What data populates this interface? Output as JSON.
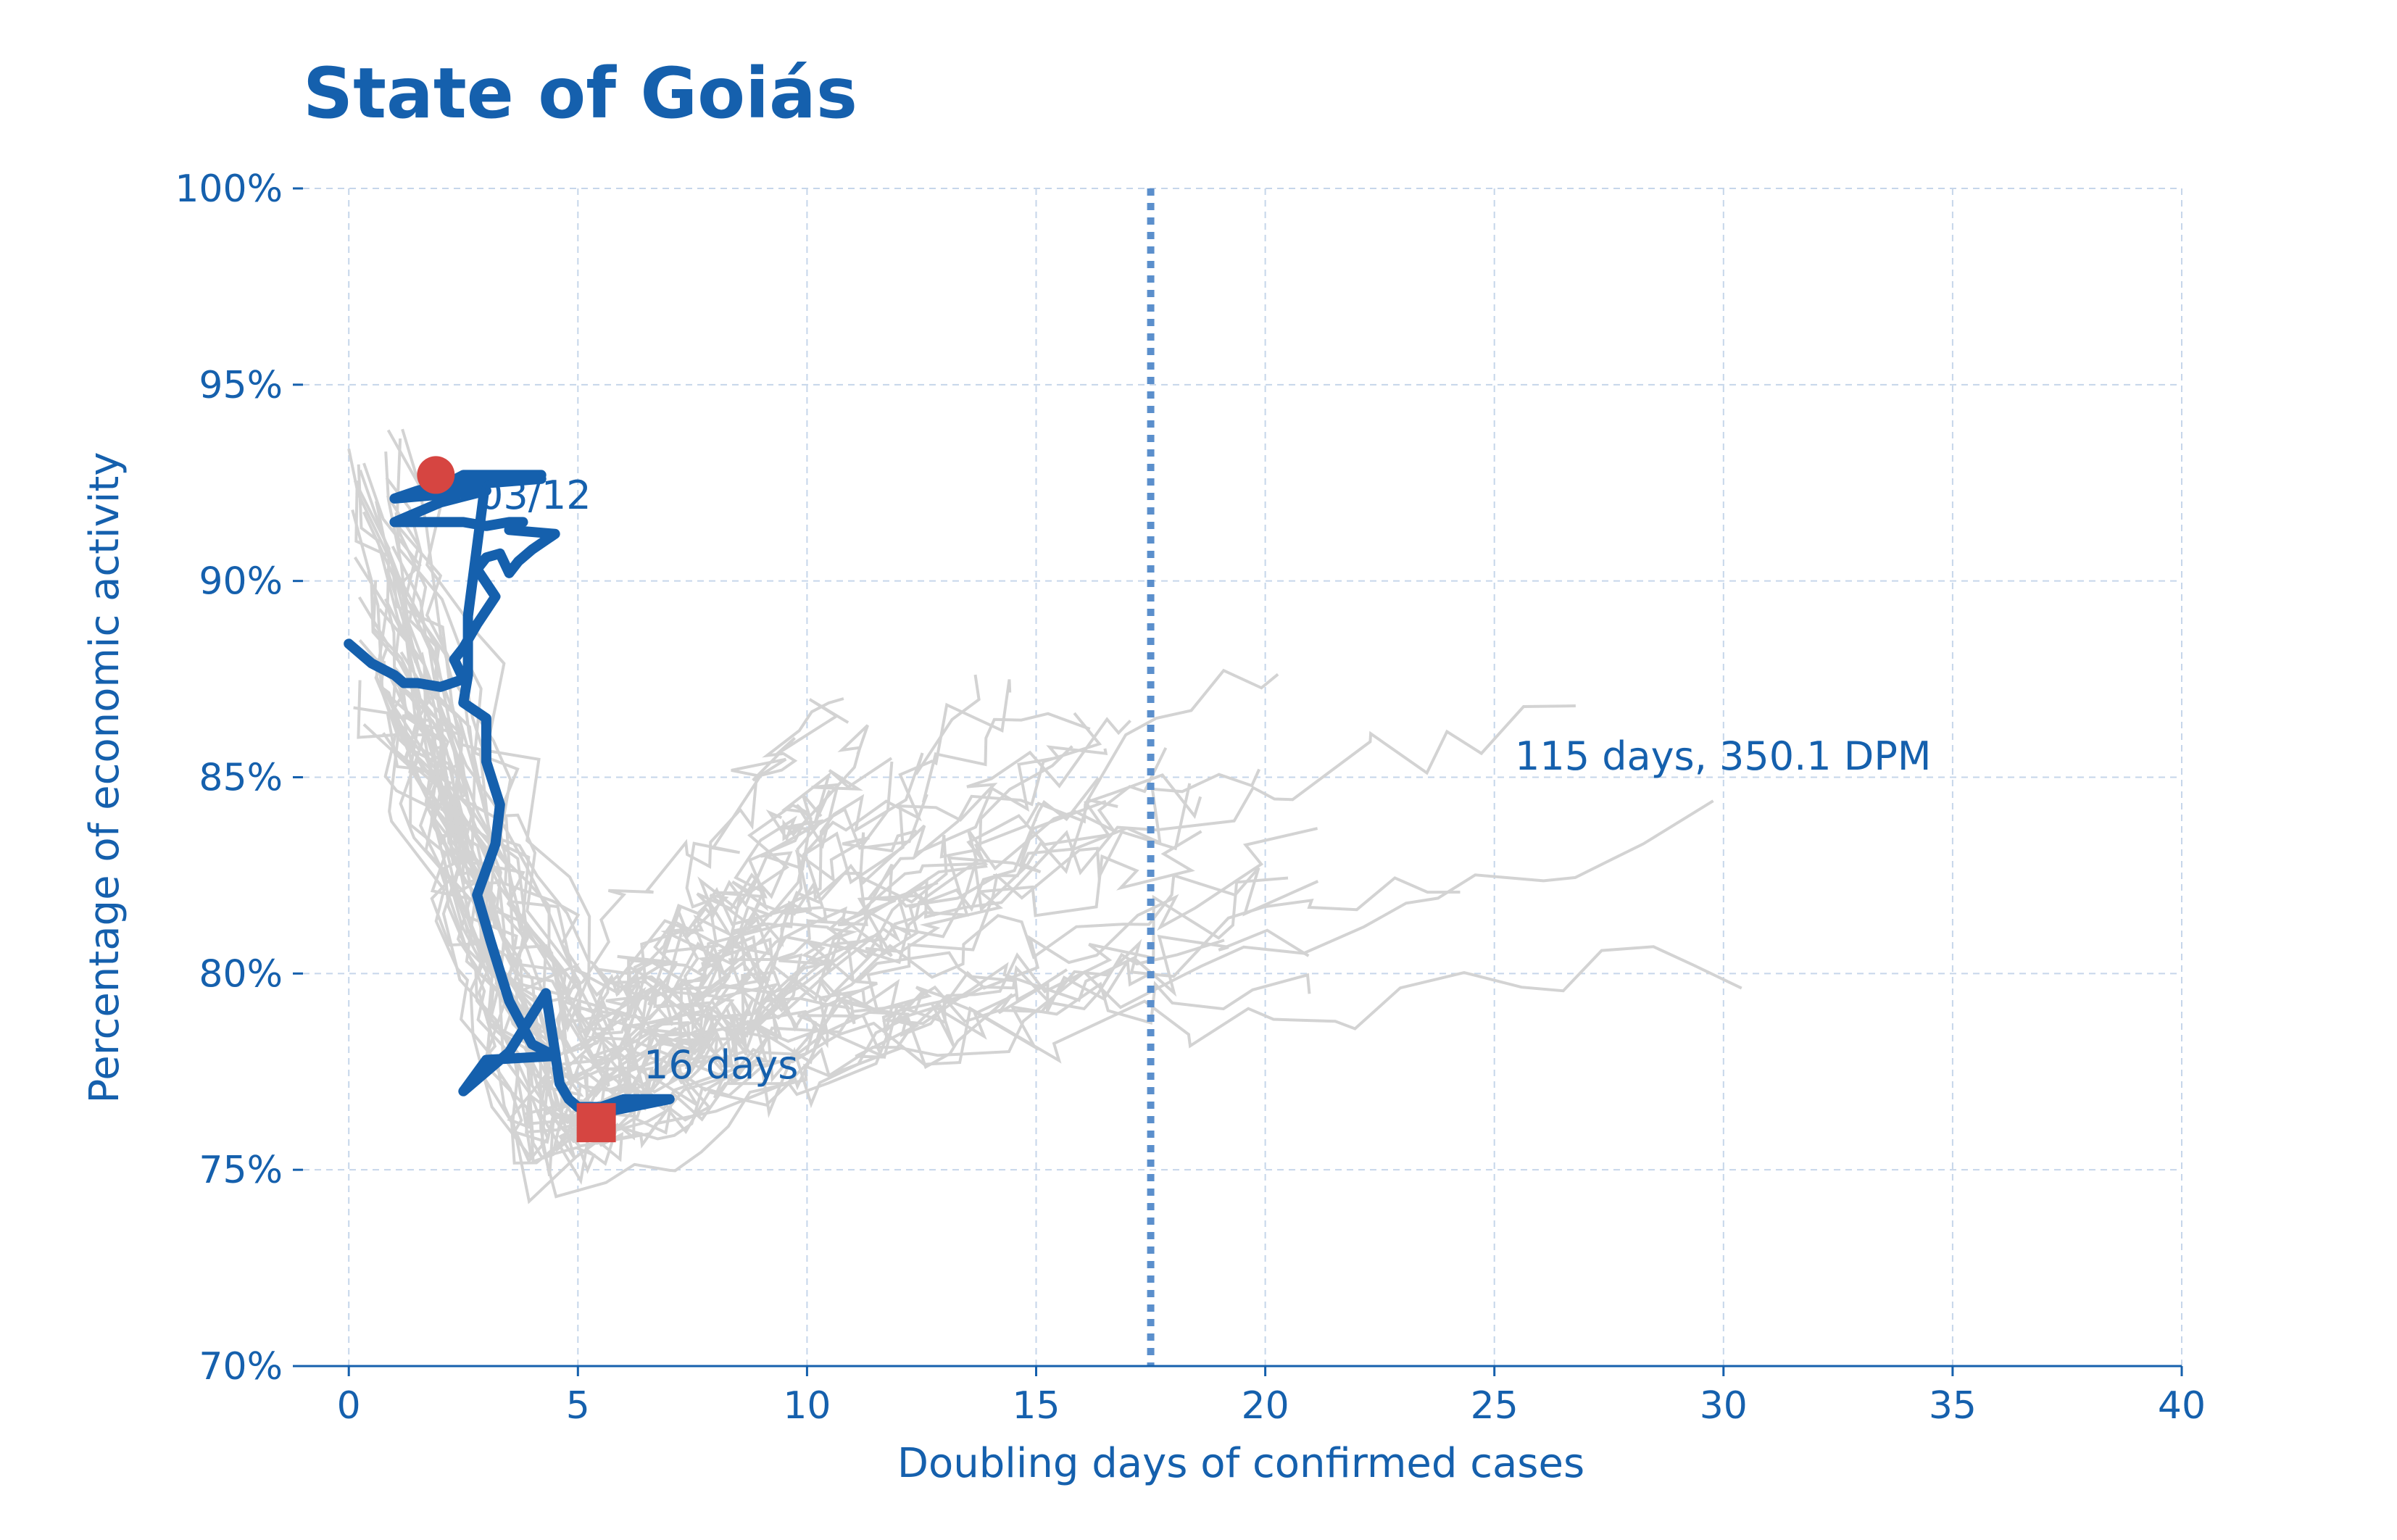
{
  "chart_data": {
    "type": "line",
    "title": "State of Goiás",
    "xlabel": "Doubling days of confirmed cases",
    "ylabel": "Percentage of economic activity",
    "xlim": [
      -1,
      40
    ],
    "ylim": [
      70,
      100
    ],
    "xticks": [
      0,
      5,
      10,
      15,
      20,
      25,
      30,
      35,
      40
    ],
    "xtick_labels": [
      "0",
      "5",
      "10",
      "15",
      "20",
      "25",
      "30",
      "35",
      "40"
    ],
    "yticks": [
      70,
      75,
      80,
      85,
      90,
      95,
      100
    ],
    "ytick_labels": [
      "70%",
      "75%",
      "80%",
      "85%",
      "90%",
      "95%",
      "100%"
    ],
    "grid": true,
    "reference_line": {
      "x": 17.5,
      "style": "dotted"
    },
    "colors": {
      "highlight": "#1560ad",
      "background_series": "#d3d3d3",
      "marker": "#d64541",
      "reference": "#5b8fcc"
    },
    "highlight_series": {
      "x": [
        0,
        0.5,
        1,
        1.2,
        1.5,
        2,
        2.5,
        2.3,
        2.5,
        2.8,
        3.2,
        2.8,
        3.0,
        3.3,
        3.5,
        3.7,
        4.0,
        4.5,
        3.5,
        3.8,
        3.5,
        3.0,
        2.5,
        1.0,
        2.0,
        3.0,
        1.0,
        1.5,
        2.5,
        4.2,
        2.0,
        2.5,
        4.2,
        3.0,
        2.6,
        2.6,
        2.6,
        2.5,
        3.0,
        3.0,
        3.3,
        3.2,
        2.8,
        3.1,
        3.5,
        4.0,
        4.5,
        3.0,
        2.5,
        3.5,
        4.3,
        4.5,
        4.6,
        4.8,
        5.0,
        5.5,
        6.0,
        7.0,
        5.3,
        5.5
      ],
      "y": [
        88.4,
        87.9,
        87.6,
        87.4,
        87.4,
        87.3,
        87.5,
        88.0,
        88.3,
        88.9,
        89.6,
        90.3,
        90.6,
        90.7,
        90.2,
        90.5,
        90.8,
        91.2,
        91.3,
        91.5,
        91.5,
        91.4,
        91.5,
        91.5,
        92.0,
        92.3,
        92.1,
        92.3,
        92.6,
        92.6,
        92.4,
        92.7,
        92.7,
        92.7,
        89.1,
        88.5,
        87.6,
        86.9,
        86.5,
        85.4,
        84.3,
        83.3,
        82.0,
        80.8,
        79.3,
        78.2,
        77.9,
        77.8,
        77.0,
        78.0,
        79.5,
        78.0,
        77.2,
        76.8,
        76.6,
        76.6,
        76.8,
        76.8,
        76.4,
        76.3
      ]
    },
    "start_label": "03/12",
    "mid_label": "16 days",
    "end_label": "115 days, 350.1 DPM"
  }
}
